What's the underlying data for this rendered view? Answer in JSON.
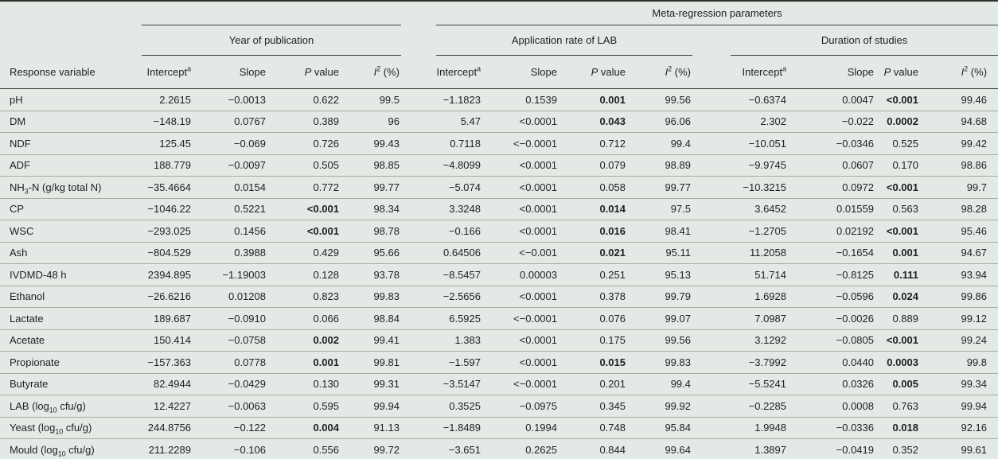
{
  "table": {
    "meta_header": "Meta-regression parameters",
    "response_col_header": "Response variable",
    "groups": [
      "Year of publication",
      "Application rate of LAB",
      "Duration of studies"
    ],
    "col_headers": [
      [
        {
          "t": "Intercept"
        },
        {
          "sup": "a"
        }
      ],
      [
        {
          "t": "Slope"
        }
      ],
      [
        {
          "i": "P"
        },
        {
          "t": " value"
        }
      ],
      [
        {
          "i": "I"
        },
        {
          "sup": "2"
        },
        {
          "t": " (%)"
        }
      ]
    ],
    "footnote_marker": "a",
    "rows": [
      {
        "label": [
          {
            "t": "pH"
          }
        ],
        "values": [
          "2.2615",
          "−0.0013",
          "0.622",
          "99.5",
          "−1.1823",
          "0.1539",
          "0.001",
          "99.56",
          "−0.6374",
          "0.0047",
          "<0.001",
          "99.46"
        ],
        "bold": [
          6,
          10
        ]
      },
      {
        "label": [
          {
            "t": "DM"
          }
        ],
        "values": [
          "−148.19",
          "0.0767",
          "0.389",
          "96",
          "5.47",
          "<0.0001",
          "0.043",
          "96.06",
          "2.302",
          "−0.022",
          "0.0002",
          "94.68"
        ],
        "bold": [
          6,
          10
        ]
      },
      {
        "label": [
          {
            "t": "NDF"
          }
        ],
        "values": [
          "125.45",
          "−0.069",
          "0.726",
          "99.43",
          "0.7118",
          "<−0.0001",
          "0.712",
          "99.4",
          "−10.051",
          "−0.0346",
          "0.525",
          "99.42"
        ],
        "bold": []
      },
      {
        "label": [
          {
            "t": "ADF"
          }
        ],
        "values": [
          "188.779",
          "−0.0097",
          "0.505",
          "98.85",
          "−4.8099",
          "<0.0001",
          "0.079",
          "98.89",
          "−9.9745",
          "0.0607",
          "0.170",
          "98.86"
        ],
        "bold": []
      },
      {
        "label": [
          {
            "t": "NH"
          },
          {
            "sub": "3"
          },
          {
            "t": "-N (g/kg total N)"
          }
        ],
        "values": [
          "−35.4664",
          "0.0154",
          "0.772",
          "99.77",
          "−5.074",
          "<0.0001",
          "0.058",
          "99.77",
          "−10.3215",
          "0.0972",
          "<0.001",
          "99.7"
        ],
        "bold": [
          10
        ]
      },
      {
        "label": [
          {
            "t": "CP"
          }
        ],
        "values": [
          "−1046.22",
          "0.5221",
          "<0.001",
          "98.34",
          "3.3248",
          "<0.0001",
          "0.014",
          "97.5",
          "3.6452",
          "0.01559",
          "0.563",
          "98.28"
        ],
        "bold": [
          2,
          6
        ]
      },
      {
        "label": [
          {
            "t": "WSC"
          }
        ],
        "values": [
          "−293.025",
          "0.1456",
          "<0.001",
          "98.78",
          "−0.166",
          "<0.0001",
          "0.016",
          "98.41",
          "−1.2705",
          "0.02192",
          "<0.001",
          "95.46"
        ],
        "bold": [
          2,
          6,
          10
        ]
      },
      {
        "label": [
          {
            "t": "Ash"
          }
        ],
        "values": [
          "−804.529",
          "0.3988",
          "0.429",
          "95.66",
          "0.64506",
          "<−0.001",
          "0.021",
          "95.11",
          "11.2058",
          "−0.1654",
          "0.001",
          "94.67"
        ],
        "bold": [
          6,
          10
        ]
      },
      {
        "label": [
          {
            "t": "IVDMD-48 h"
          }
        ],
        "values": [
          "2394.895",
          "−1.19003",
          "0.128",
          "93.78",
          "−8.5457",
          "0.00003",
          "0.251",
          "95.13",
          "51.714",
          "−0.8125",
          "0.111",
          "93.94"
        ],
        "bold": [
          10
        ]
      },
      {
        "label": [
          {
            "t": "Ethanol"
          }
        ],
        "values": [
          "−26.6216",
          "0.01208",
          "0.823",
          "99.83",
          "−2.5656",
          "<0.0001",
          "0.378",
          "99.79",
          "1.6928",
          "−0.0596",
          "0.024",
          "99.86"
        ],
        "bold": [
          10
        ]
      },
      {
        "label": [
          {
            "t": "Lactate"
          }
        ],
        "values": [
          "189.687",
          "−0.0910",
          "0.066",
          "98.84",
          "6.5925",
          "<−0.0001",
          "0.076",
          "99.07",
          "7.0987",
          "−0.0026",
          "0.889",
          "99.12"
        ],
        "bold": []
      },
      {
        "label": [
          {
            "t": "Acetate"
          }
        ],
        "values": [
          "150.414",
          "−0.0758",
          "0.002",
          "99.41",
          "1.383",
          "<0.0001",
          "0.175",
          "99.56",
          "3.1292",
          "−0.0805",
          "<0.001",
          "99.24"
        ],
        "bold": [
          2,
          10
        ]
      },
      {
        "label": [
          {
            "t": "Propionate"
          }
        ],
        "values": [
          "−157.363",
          "0.0778",
          "0.001",
          "99.81",
          "−1.597",
          "<0.0001",
          "0.015",
          "99.83",
          "−3.7992",
          "0.0440",
          "0.0003",
          "99.8"
        ],
        "bold": [
          2,
          6,
          10
        ]
      },
      {
        "label": [
          {
            "t": "Butyrate"
          }
        ],
        "values": [
          "82.4944",
          "−0.0429",
          "0.130",
          "99.31",
          "−3.5147",
          "<−0.0001",
          "0.201",
          "99.4",
          "−5.5241",
          "0.0326",
          "0.005",
          "99.34"
        ],
        "bold": [
          10
        ]
      },
      {
        "label": [
          {
            "t": "LAB (log"
          },
          {
            "sub": "10"
          },
          {
            "t": " cfu/g)"
          }
        ],
        "values": [
          "12.4227",
          "−0.0063",
          "0.595",
          "99.94",
          "0.3525",
          "−0.0975",
          "0.345",
          "99.92",
          "−0.2285",
          "0.0008",
          "0.763",
          "99.94"
        ],
        "bold": []
      },
      {
        "label": [
          {
            "t": "Yeast (log"
          },
          {
            "sub": "10"
          },
          {
            "t": " cfu/g)"
          }
        ],
        "values": [
          "244.8756",
          "−0.122",
          "0.004",
          "91.13",
          "−1.8489",
          "0.1994",
          "0.748",
          "95.84",
          "1.9948",
          "−0.0336",
          "0.018",
          "92.16"
        ],
        "bold": [
          2,
          10
        ]
      },
      {
        "label": [
          {
            "t": "Mould (log"
          },
          {
            "sub": "10"
          },
          {
            "t": " cfu/g)"
          }
        ],
        "values": [
          "211.2289",
          "−0.106",
          "0.556",
          "99.72",
          "−3.651",
          "0.2625",
          "0.844",
          "99.64",
          "1.3897",
          "−0.0419",
          "0.352",
          "99.61"
        ],
        "bold": []
      }
    ]
  },
  "colors": {
    "background": "#e3eae5",
    "heavy_rule": "#30352f",
    "light_rule": "#a3aca4",
    "text": "#1d211e"
  }
}
